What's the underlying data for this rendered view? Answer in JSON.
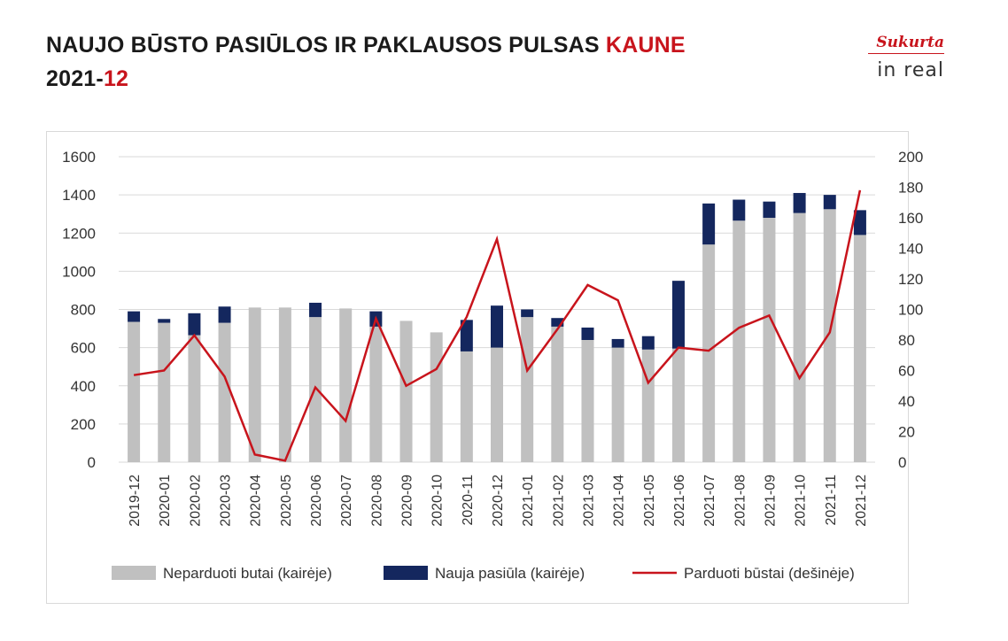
{
  "header": {
    "title_part1": "NAUJO BŪSTO PASIŪLOS IR PAKLAUSOS PULSAS ",
    "title_highlight": "KAUNE",
    "date_prefix": "2021-",
    "date_highlight": "12"
  },
  "logo": {
    "signature": "Sukurta",
    "brand": "in real"
  },
  "colors": {
    "unsold": "#c0c0c0",
    "new_supply": "#14275e",
    "sold": "#c8141c",
    "accent": "#c8141c"
  },
  "chart_data": {
    "type": "bar",
    "stacked": true,
    "categories": [
      "2019-12",
      "2020-01",
      "2020-02",
      "2020-03",
      "2020-04",
      "2020-05",
      "2020-06",
      "2020-07",
      "2020-08",
      "2020-09",
      "2020-10",
      "2020-11",
      "2020-12",
      "2021-01",
      "2021-02",
      "2021-03",
      "2021-04",
      "2021-05",
      "2021-06",
      "2021-07",
      "2021-08",
      "2021-09",
      "2021-10",
      "2021-11",
      "2021-12"
    ],
    "y_left": {
      "ticks": [
        "0",
        "200",
        "400",
        "600",
        "800",
        "1000",
        "1200",
        "1400",
        "1600"
      ],
      "min": 0,
      "max": 1600
    },
    "y_right": {
      "ticks": [
        "0",
        "20",
        "40",
        "60",
        "80",
        "100",
        "120",
        "140",
        "160",
        "180",
        "200"
      ],
      "min": 0,
      "max": 200
    },
    "grid": true,
    "legend_position": "bottom",
    "series": [
      {
        "name": "Neparduoti butai (kairėje)",
        "axis": "left",
        "kind": "bar",
        "values": [
          735,
          730,
          665,
          730,
          810,
          810,
          760,
          805,
          710,
          740,
          680,
          580,
          600,
          760,
          710,
          640,
          600,
          590,
          595,
          1140,
          1265,
          1280,
          1305,
          1325,
          1190
        ]
      },
      {
        "name": "Nauja pasiūla (kairėje)",
        "axis": "left",
        "kind": "bar",
        "values": [
          55,
          20,
          115,
          85,
          0,
          0,
          75,
          0,
          80,
          0,
          0,
          165,
          220,
          40,
          45,
          65,
          45,
          70,
          355,
          215,
          110,
          85,
          105,
          75,
          130
        ]
      },
      {
        "name": "Parduoti būstai (dešinėje)",
        "axis": "right",
        "kind": "line",
        "values": [
          57,
          60,
          83,
          56,
          5,
          1,
          49,
          27,
          94,
          50,
          61,
          95,
          146,
          60,
          87,
          116,
          106,
          52,
          75,
          73,
          88,
          96,
          55,
          85,
          178
        ]
      }
    ]
  }
}
